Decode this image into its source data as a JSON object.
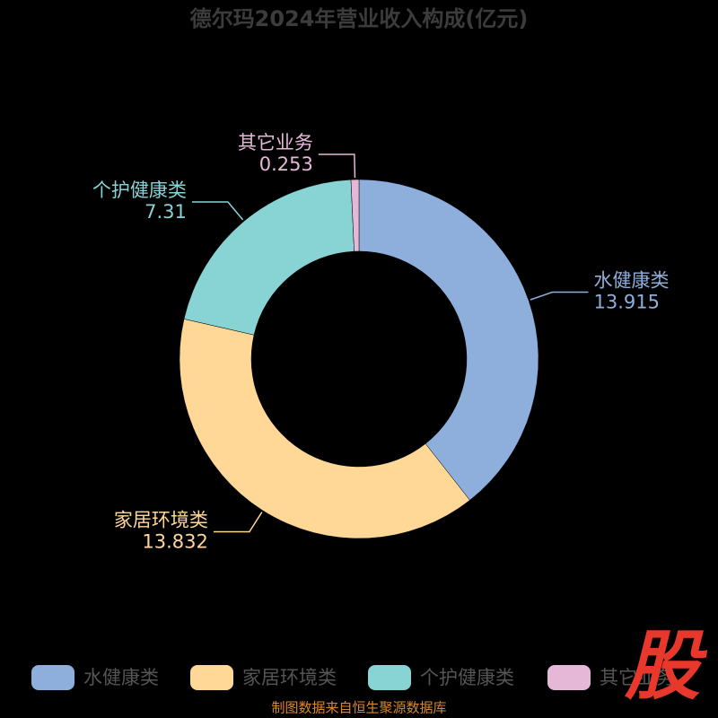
{
  "chart_data": {
    "type": "donut",
    "title": "德尔玛2024年营业收入构成(亿元)",
    "categories": [
      "水健康类",
      "家居环境类",
      "个护健康类",
      "其它业务"
    ],
    "values": [
      13.915,
      13.832,
      7.31,
      0.253
    ],
    "colors": [
      "#8eaedc",
      "#ffd897",
      "#88d4d4",
      "#e6b8d8"
    ],
    "legend": "bottom",
    "source": "制图数据来自恒生聚源数据库",
    "logo": "股"
  }
}
